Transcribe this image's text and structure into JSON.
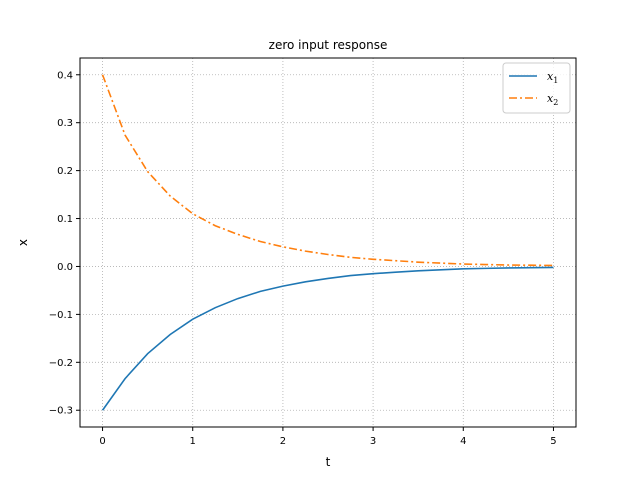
{
  "chart_data": {
    "type": "line",
    "title": "zero input response",
    "xlabel": "t",
    "ylabel": "x",
    "xlim": [
      -0.25,
      5.25
    ],
    "ylim": [
      -0.335,
      0.435
    ],
    "xticks": [
      0,
      1,
      2,
      3,
      4,
      5
    ],
    "yticks": [
      -0.3,
      -0.2,
      -0.1,
      0.0,
      0.1,
      0.2,
      0.3,
      0.4
    ],
    "ytick_labels": [
      "−0.3",
      "−0.2",
      "−0.1",
      "0.0",
      "0.1",
      "0.2",
      "0.3",
      "0.4"
    ],
    "xtick_labels": [
      "0",
      "1",
      "2",
      "3",
      "4",
      "5"
    ],
    "grid": true,
    "legend_position": "top-right",
    "x": [
      0,
      0.25,
      0.5,
      0.75,
      1.0,
      1.25,
      1.5,
      1.75,
      2.0,
      2.25,
      2.5,
      2.75,
      3.0,
      3.25,
      3.5,
      3.75,
      4.0,
      4.25,
      4.5,
      4.75,
      5.0
    ],
    "series": [
      {
        "name": "x1",
        "label_main": "x",
        "label_sub": "1",
        "color": "#1f77b4",
        "style": "solid",
        "values": [
          -0.3,
          -0.234,
          -0.182,
          -0.142,
          -0.11,
          -0.086,
          -0.067,
          -0.052,
          -0.041,
          -0.032,
          -0.025,
          -0.019,
          -0.015,
          -0.012,
          -0.009,
          -0.007,
          -0.005,
          -0.004,
          -0.003,
          -0.0026,
          -0.002
        ]
      },
      {
        "name": "x2",
        "label_main": "x",
        "label_sub": "2",
        "color": "#ff7f0e",
        "style": "dashdot",
        "values": [
          0.4,
          0.274,
          0.198,
          0.147,
          0.11,
          0.085,
          0.067,
          0.052,
          0.041,
          0.032,
          0.025,
          0.019,
          0.015,
          0.012,
          0.009,
          0.007,
          0.005,
          0.004,
          0.003,
          0.0026,
          0.002
        ]
      }
    ]
  }
}
